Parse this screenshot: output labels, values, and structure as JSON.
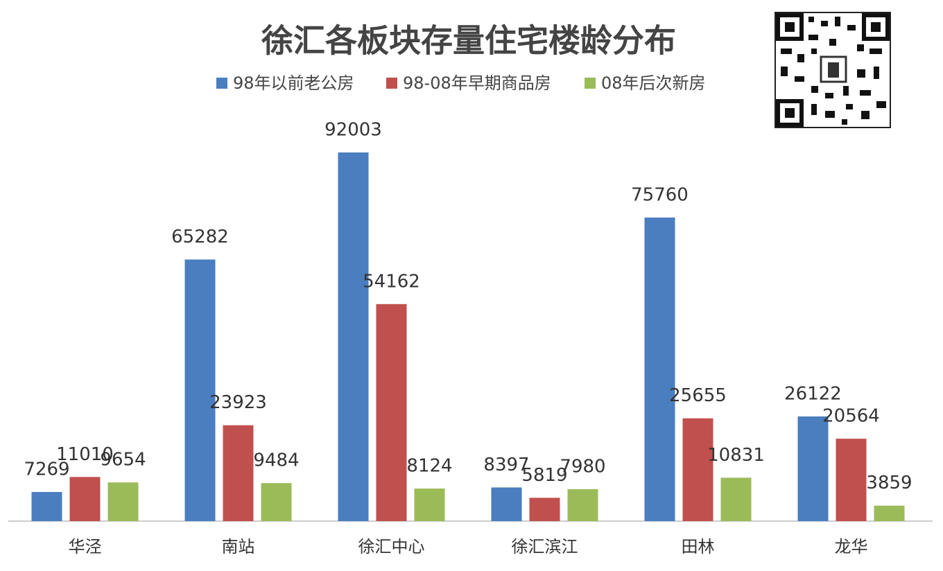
{
  "chart_data": {
    "type": "bar",
    "title": "徐汇各板块存量住宅楼龄分布",
    "categories": [
      "华泾",
      "南站",
      "徐汇中心",
      "徐汇滨江",
      "田林",
      "龙华"
    ],
    "series": [
      {
        "name": "98年以前老公房",
        "color": "#4a7ebf",
        "values": [
          7269,
          65282,
          92003,
          8397,
          75760,
          26122
        ]
      },
      {
        "name": "98-08年早期商品房",
        "color": "#c0504d",
        "values": [
          11010,
          23923,
          54162,
          5819,
          25655,
          20564
        ]
      },
      {
        "name": "08年后次新房",
        "color": "#9bbb59",
        "values": [
          9654,
          9484,
          8124,
          7980,
          10831,
          3859
        ]
      }
    ],
    "legend": "top",
    "data_labels": true
  }
}
